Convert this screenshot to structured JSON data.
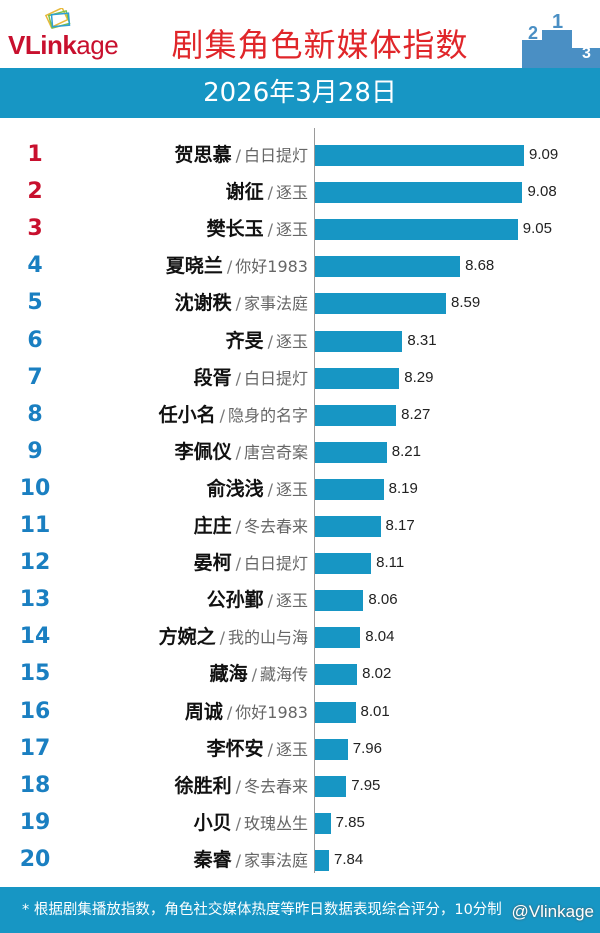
{
  "header": {
    "logo_text": "VLinkage",
    "title": "剧集角色新媒体指数",
    "date": "2026年3月28日"
  },
  "colors": {
    "bar": "#1796c4",
    "rank_top3": "#c8102e",
    "rank_other": "#1a7fc1",
    "title": "#e0262a"
  },
  "chart_data": {
    "type": "bar",
    "orientation": "horizontal",
    "title": "剧集角色新媒体指数",
    "subtitle": "2026年3月28日",
    "ranks": [
      1,
      2,
      3,
      4,
      5,
      6,
      7,
      8,
      9,
      10,
      11,
      12,
      13,
      14,
      15,
      16,
      17,
      18,
      19,
      20
    ],
    "rows": [
      {
        "rank": "1",
        "name": "贺思慕",
        "drama": "白日提灯",
        "value": "9.09"
      },
      {
        "rank": "2",
        "name": "谢征",
        "drama": "逐玉",
        "value": "9.08"
      },
      {
        "rank": "3",
        "name": "樊长玉",
        "drama": "逐玉",
        "value": "9.05"
      },
      {
        "rank": "4",
        "name": "夏晓兰",
        "drama": "你好1983",
        "value": "8.68"
      },
      {
        "rank": "5",
        "name": "沈谢秩",
        "drama": "家事法庭",
        "value": "8.59"
      },
      {
        "rank": "6",
        "name": "齐旻",
        "drama": "逐玉",
        "value": "8.31"
      },
      {
        "rank": "7",
        "name": "段胥",
        "drama": "白日提灯",
        "value": "8.29"
      },
      {
        "rank": "8",
        "name": "任小名",
        "drama": "隐身的名字",
        "value": "8.27"
      },
      {
        "rank": "9",
        "name": "李佩仪",
        "drama": "唐宫奇案",
        "value": "8.21"
      },
      {
        "rank": "10",
        "name": "俞浅浅",
        "drama": "逐玉",
        "value": "8.19"
      },
      {
        "rank": "11",
        "name": "庄庄",
        "drama": "冬去春来",
        "value": "8.17"
      },
      {
        "rank": "12",
        "name": "晏柯",
        "drama": "白日提灯",
        "value": "8.11"
      },
      {
        "rank": "13",
        "name": "公孙鄞",
        "drama": "逐玉",
        "value": "8.06"
      },
      {
        "rank": "14",
        "name": "方婉之",
        "drama": "我的山与海",
        "value": "8.04"
      },
      {
        "rank": "15",
        "name": "藏海",
        "drama": "藏海传",
        "value": "8.02"
      },
      {
        "rank": "16",
        "name": "周诚",
        "drama": "你好1983",
        "value": "8.01"
      },
      {
        "rank": "17",
        "name": "李怀安",
        "drama": "逐玉",
        "value": "7.96"
      },
      {
        "rank": "18",
        "name": "徐胜利",
        "drama": "冬去春来",
        "value": "7.95"
      },
      {
        "rank": "19",
        "name": "小贝",
        "drama": "玫瑰丛生",
        "value": "7.85"
      },
      {
        "rank": "20",
        "name": "秦睿",
        "drama": "家事法庭",
        "value": "7.84"
      }
    ],
    "separator": "/",
    "xlim": [
      7.75,
      9.2
    ],
    "grid": false,
    "legend": "none"
  },
  "footer": {
    "note": "* 根据剧集播放指数，角色社交媒体热度等昨日数据表现综合评分，10分制",
    "watermark": "@Vlinkage"
  }
}
